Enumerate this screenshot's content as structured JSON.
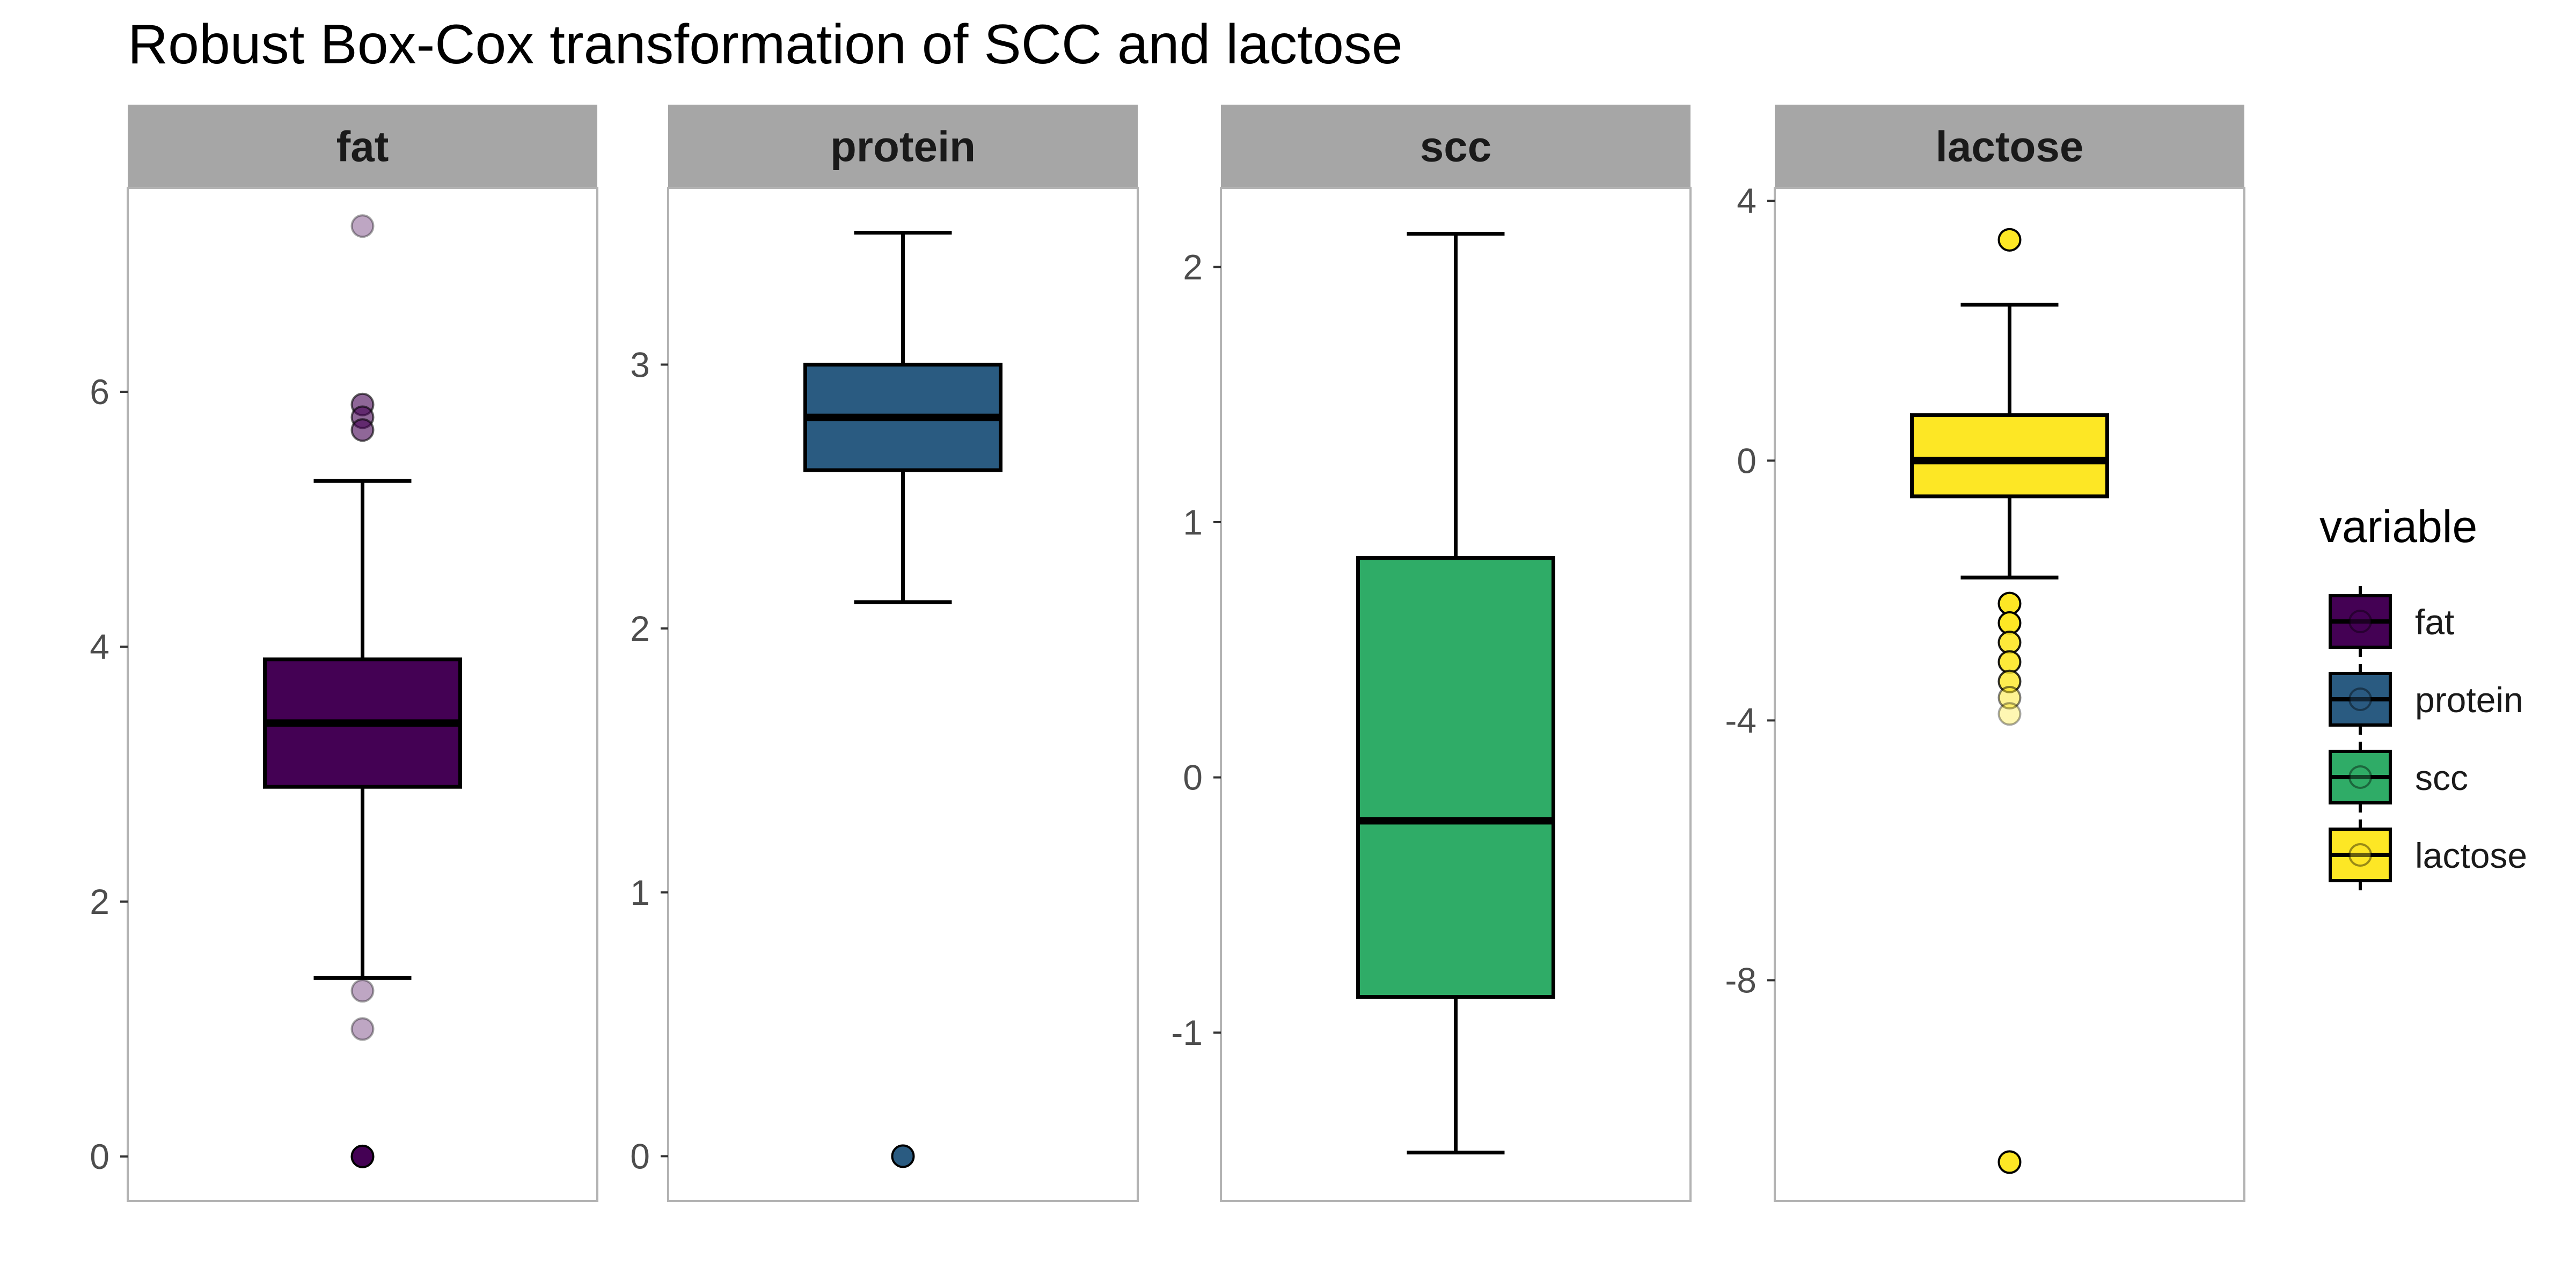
{
  "chart_data": {
    "type": "box",
    "title": "Robust Box-Cox transformation of SCC and lactose",
    "legend": {
      "title": "variable",
      "position": "right"
    },
    "panels": [
      {
        "name": "fat",
        "color": "#440154",
        "ylim": [
          -0.35,
          7.6
        ],
        "ticks": [
          0,
          2,
          4,
          6
        ],
        "tick_labels": [
          "0",
          "2",
          "4",
          "6"
        ],
        "box": {
          "whisker_low": 1.4,
          "q1": 2.9,
          "median": 3.4,
          "q3": 3.9,
          "whisker_high": 5.3
        },
        "outliers": [
          {
            "y": 7.3,
            "alpha": 0.35
          },
          {
            "y": 5.9,
            "alpha": 0.6
          },
          {
            "y": 5.8,
            "alpha": 0.6
          },
          {
            "y": 5.7,
            "alpha": 0.6
          },
          {
            "y": 1.3,
            "alpha": 0.35
          },
          {
            "y": 1.0,
            "alpha": 0.35
          },
          {
            "y": 0.0,
            "alpha": 1.0
          }
        ]
      },
      {
        "name": "protein",
        "color": "#2a5b81",
        "ylim": [
          -0.17,
          3.67
        ],
        "ticks": [
          0,
          1,
          2,
          3
        ],
        "tick_labels": [
          "0",
          "1",
          "2",
          "3"
        ],
        "box": {
          "whisker_low": 2.1,
          "q1": 2.6,
          "median": 2.8,
          "q3": 3.0,
          "whisker_high": 3.5
        },
        "outliers": [
          {
            "y": 0.0,
            "alpha": 1.0
          }
        ]
      },
      {
        "name": "scc",
        "color": "#2fac67",
        "ylim": [
          -1.66,
          2.31
        ],
        "ticks": [
          -1,
          0,
          1,
          2
        ],
        "tick_labels": [
          "-1",
          "0",
          "1",
          "2"
        ],
        "box": {
          "whisker_low": -1.47,
          "q1": -0.86,
          "median": -0.17,
          "q3": 0.86,
          "whisker_high": 2.13
        },
        "outliers": []
      },
      {
        "name": "lactose",
        "color": "#fde725",
        "ylim": [
          -11.4,
          4.2
        ],
        "ticks": [
          -8,
          -4,
          0,
          4
        ],
        "tick_labels": [
          "-8",
          "-4",
          "0",
          "4"
        ],
        "box": {
          "whisker_low": -1.8,
          "q1": -0.55,
          "median": 0.0,
          "q3": 0.7,
          "whisker_high": 2.4
        },
        "outliers": [
          {
            "y": 3.4,
            "alpha": 1.0
          },
          {
            "y": -2.2,
            "alpha": 1.0
          },
          {
            "y": -2.5,
            "alpha": 1.0
          },
          {
            "y": -2.8,
            "alpha": 0.9
          },
          {
            "y": -3.1,
            "alpha": 0.9
          },
          {
            "y": -3.4,
            "alpha": 0.8
          },
          {
            "y": -3.65,
            "alpha": 0.5
          },
          {
            "y": -3.9,
            "alpha": 0.35
          },
          {
            "y": -10.8,
            "alpha": 1.0
          }
        ]
      }
    ]
  }
}
